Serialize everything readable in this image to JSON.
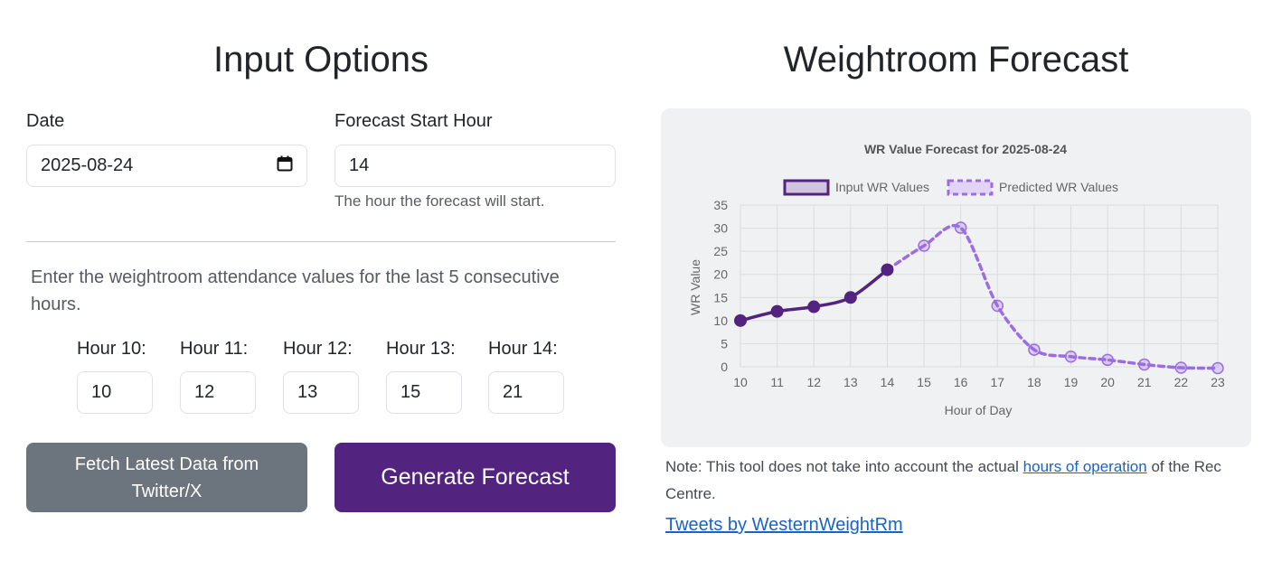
{
  "input_panel": {
    "title": "Input Options",
    "date_label": "Date",
    "date_value": "2025-08-24",
    "start_hour_label": "Forecast Start Hour",
    "start_hour_value": "14",
    "start_hour_help": "The hour the forecast will start.",
    "instructions": "Enter the weightroom attendance values for the last 5 consecutive hours.",
    "hours": [
      {
        "label": "Hour 10:",
        "value": "10"
      },
      {
        "label": "Hour 11:",
        "value": "12"
      },
      {
        "label": "Hour 12:",
        "value": "13"
      },
      {
        "label": "Hour 13:",
        "value": "15"
      },
      {
        "label": "Hour 14:",
        "value": "21"
      }
    ],
    "fetch_button": "Fetch Latest Data from Twitter/X",
    "generate_button": "Generate Forecast"
  },
  "forecast_panel": {
    "title": "Weightroom Forecast",
    "note_prefix": "Note: This tool does not take into account the actual ",
    "note_link": "hours of operation",
    "note_suffix": " of the Rec Centre.",
    "tweets_link": "Tweets by WesternWeightRm"
  },
  "colors": {
    "input_series": "#52247f",
    "predicted_series": "#9b6de0",
    "generate_button": "#52247f",
    "fetch_button": "#6c757d",
    "link": "#1a63c6"
  },
  "chart_data": {
    "type": "line",
    "title": "WR Value Forecast for 2025-08-24",
    "xlabel": "Hour of Day",
    "ylabel": "WR Value",
    "x": [
      10,
      11,
      12,
      13,
      14,
      15,
      16,
      17,
      18,
      19,
      20,
      21,
      22,
      23
    ],
    "xlim": [
      10,
      23
    ],
    "ylim": [
      0,
      35
    ],
    "yticks": [
      0,
      5,
      10,
      15,
      20,
      25,
      30,
      35
    ],
    "grid": true,
    "legend_position": "top",
    "series": [
      {
        "name": "Input WR Values",
        "style": "solid",
        "x": [
          10,
          11,
          12,
          13,
          14
        ],
        "values": [
          10,
          12,
          13,
          15,
          21
        ]
      },
      {
        "name": "Predicted WR Values",
        "style": "dashed",
        "x": [
          14,
          15,
          16,
          17,
          18,
          19,
          20,
          21,
          22,
          23
        ],
        "values": [
          21,
          26.2,
          30.1,
          13.2,
          3.7,
          2.2,
          1.5,
          0.5,
          -0.2,
          -0.3
        ]
      }
    ]
  }
}
